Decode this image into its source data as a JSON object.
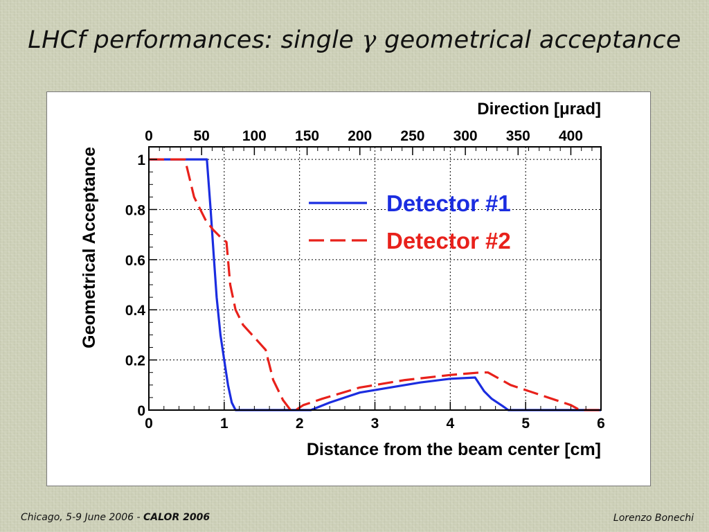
{
  "slide": {
    "title_prefix": "LHCf performances: single ",
    "title_symbol": "γ",
    "title_suffix": " geometrical acceptance",
    "footer_left_place_date": "Chicago, 5-9 June 2006  - ",
    "footer_left_conference": "CALOR 2006",
    "footer_right": "Lorenzo Bonechi"
  },
  "chart_data": {
    "type": "line",
    "xlabel": "Distance from the beam center [cm]",
    "ylabel": "Geometrical Acceptance",
    "x2label": "Direction [μrad]",
    "xlim": [
      0,
      6
    ],
    "ylim": [
      0,
      1.05
    ],
    "x_ticks": [
      "0",
      "1",
      "2",
      "3",
      "4",
      "5",
      "6"
    ],
    "y_ticks": [
      "0",
      "0.2",
      "0.4",
      "0.6",
      "0.8",
      "1"
    ],
    "x2_ticks": [
      "0",
      "50",
      "100",
      "150",
      "200",
      "250",
      "300",
      "350",
      "400"
    ],
    "x2_tick_values_cm": [
      0,
      0.7,
      1.4,
      2.1,
      2.8,
      3.5,
      4.2,
      4.9,
      5.6
    ],
    "grid": true,
    "legend_position": "top-right",
    "series": [
      {
        "name": "Detector #1",
        "color": "#1b2de0",
        "dash": "solid",
        "x": [
          0,
          0.77,
          0.82,
          0.86,
          0.9,
          0.95,
          1.0,
          1.05,
          1.1,
          1.15,
          2.15,
          2.4,
          2.8,
          3.2,
          3.6,
          4.0,
          4.33,
          4.45,
          4.55,
          4.7,
          4.77,
          6.0
        ],
        "y": [
          1.0,
          1.0,
          0.8,
          0.62,
          0.45,
          0.3,
          0.2,
          0.1,
          0.03,
          0.0,
          0.0,
          0.03,
          0.07,
          0.09,
          0.11,
          0.125,
          0.13,
          0.075,
          0.045,
          0.015,
          0.0,
          0.0
        ]
      },
      {
        "name": "Detector #2",
        "color": "#e8211b",
        "dash": "dashed",
        "x": [
          0,
          0.48,
          0.6,
          0.75,
          0.85,
          0.95,
          1.03,
          1.08,
          1.15,
          1.25,
          1.4,
          1.55,
          1.65,
          1.78,
          1.88,
          1.95,
          2.05,
          2.3,
          2.8,
          3.4,
          4.0,
          4.4,
          4.5,
          4.8,
          5.2,
          5.6,
          5.72,
          6.0
        ],
        "y": [
          1.0,
          1.0,
          0.85,
          0.76,
          0.72,
          0.69,
          0.67,
          0.5,
          0.4,
          0.34,
          0.29,
          0.24,
          0.12,
          0.04,
          0.0,
          0.0,
          0.02,
          0.045,
          0.09,
          0.12,
          0.14,
          0.15,
          0.15,
          0.1,
          0.06,
          0.02,
          0.0,
          0.0
        ]
      }
    ]
  }
}
